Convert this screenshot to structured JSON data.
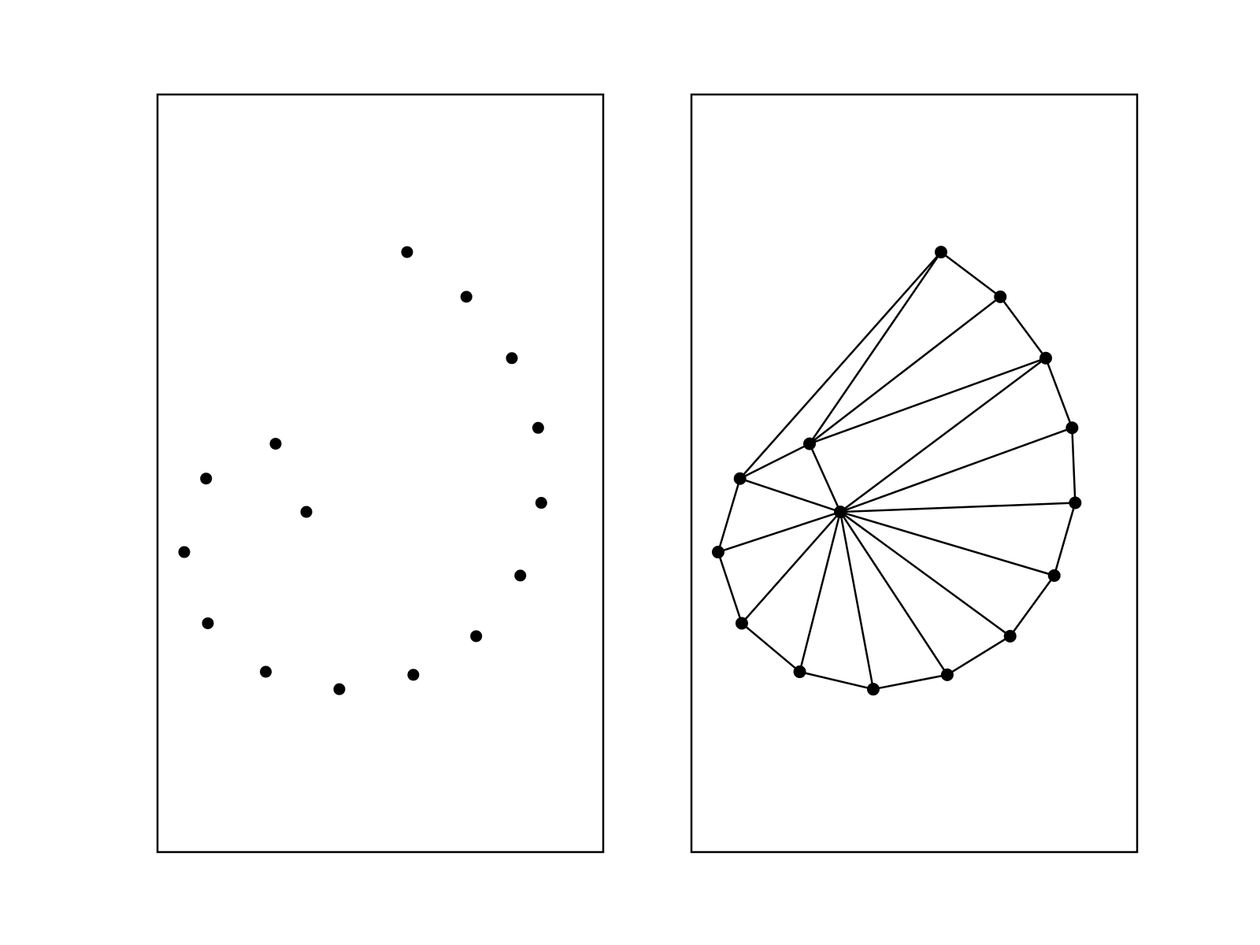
{
  "diagram": {
    "stroke_color": "#000000",
    "point_color": "#000000",
    "background": "#ffffff",
    "panels": [
      {
        "name": "points-only",
        "show_edges": false
      },
      {
        "name": "triangulation",
        "show_edges": true
      }
    ],
    "points": [
      {
        "id": "p0",
        "x": 0.56,
        "y": 0.792
      },
      {
        "id": "p1",
        "x": 0.693,
        "y": 0.733
      },
      {
        "id": "p2",
        "x": 0.795,
        "y": 0.652
      },
      {
        "id": "p3",
        "x": 0.854,
        "y": 0.56
      },
      {
        "id": "p4",
        "x": 0.861,
        "y": 0.461
      },
      {
        "id": "p5",
        "x": 0.814,
        "y": 0.365
      },
      {
        "id": "p6",
        "x": 0.715,
        "y": 0.285
      },
      {
        "id": "p7",
        "x": 0.574,
        "y": 0.234
      },
      {
        "id": "p8",
        "x": 0.408,
        "y": 0.215
      },
      {
        "id": "p9",
        "x": 0.243,
        "y": 0.238
      },
      {
        "id": "p10",
        "x": 0.113,
        "y": 0.302
      },
      {
        "id": "p11",
        "x": 0.06,
        "y": 0.396
      },
      {
        "id": "p12",
        "x": 0.109,
        "y": 0.493
      },
      {
        "id": "p13",
        "x": 0.265,
        "y": 0.539
      },
      {
        "id": "p14",
        "x": 0.334,
        "y": 0.449
      }
    ],
    "edges": [
      [
        "p0",
        "p1"
      ],
      [
        "p1",
        "p2"
      ],
      [
        "p2",
        "p3"
      ],
      [
        "p3",
        "p4"
      ],
      [
        "p4",
        "p5"
      ],
      [
        "p5",
        "p6"
      ],
      [
        "p6",
        "p7"
      ],
      [
        "p7",
        "p8"
      ],
      [
        "p8",
        "p9"
      ],
      [
        "p9",
        "p10"
      ],
      [
        "p10",
        "p11"
      ],
      [
        "p11",
        "p12"
      ],
      [
        "p12",
        "p0"
      ],
      [
        "p12",
        "p13"
      ],
      [
        "p13",
        "p0"
      ],
      [
        "p13",
        "p1"
      ],
      [
        "p13",
        "p2"
      ],
      [
        "p13",
        "p14"
      ],
      [
        "p14",
        "p12"
      ],
      [
        "p14",
        "p11"
      ],
      [
        "p14",
        "p10"
      ],
      [
        "p14",
        "p9"
      ],
      [
        "p14",
        "p8"
      ],
      [
        "p14",
        "p7"
      ],
      [
        "p14",
        "p6"
      ],
      [
        "p14",
        "p5"
      ],
      [
        "p14",
        "p4"
      ],
      [
        "p14",
        "p3"
      ],
      [
        "p14",
        "p2"
      ]
    ]
  }
}
